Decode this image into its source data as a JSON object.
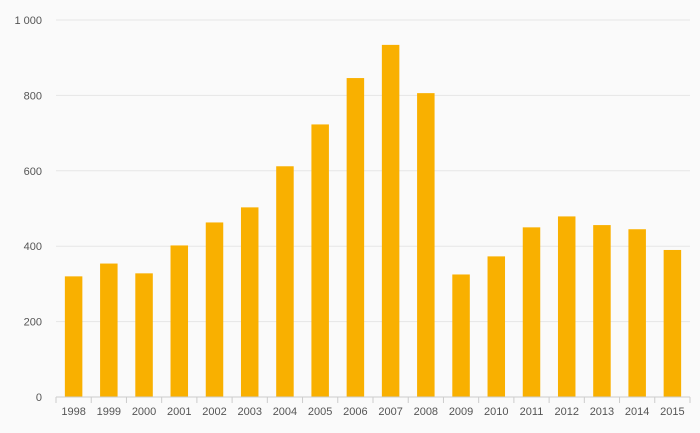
{
  "chart_data": {
    "type": "bar",
    "title": "",
    "xlabel": "",
    "ylabel": "",
    "categories": [
      "1998",
      "1999",
      "2000",
      "2001",
      "2002",
      "2003",
      "2004",
      "2005",
      "2006",
      "2007",
      "2008",
      "2009",
      "2010",
      "2011",
      "2012",
      "2013",
      "2014",
      "2015"
    ],
    "values": [
      320,
      354,
      328,
      402,
      463,
      503,
      612,
      723,
      846,
      934,
      806,
      325,
      373,
      450,
      479,
      456,
      445,
      390
    ],
    "ylim": [
      0,
      1000
    ],
    "yticks": [
      0,
      200,
      400,
      600,
      800,
      1000
    ],
    "ytick_labels": [
      "0",
      "200",
      "400",
      "600",
      "800",
      "1 000"
    ],
    "grid": true,
    "legend": "none",
    "colors": {
      "bar": "#f9b000",
      "grid": "#e6e6e6",
      "axis": "#cccccc",
      "text": "#555555",
      "background": "#fafafa"
    }
  }
}
